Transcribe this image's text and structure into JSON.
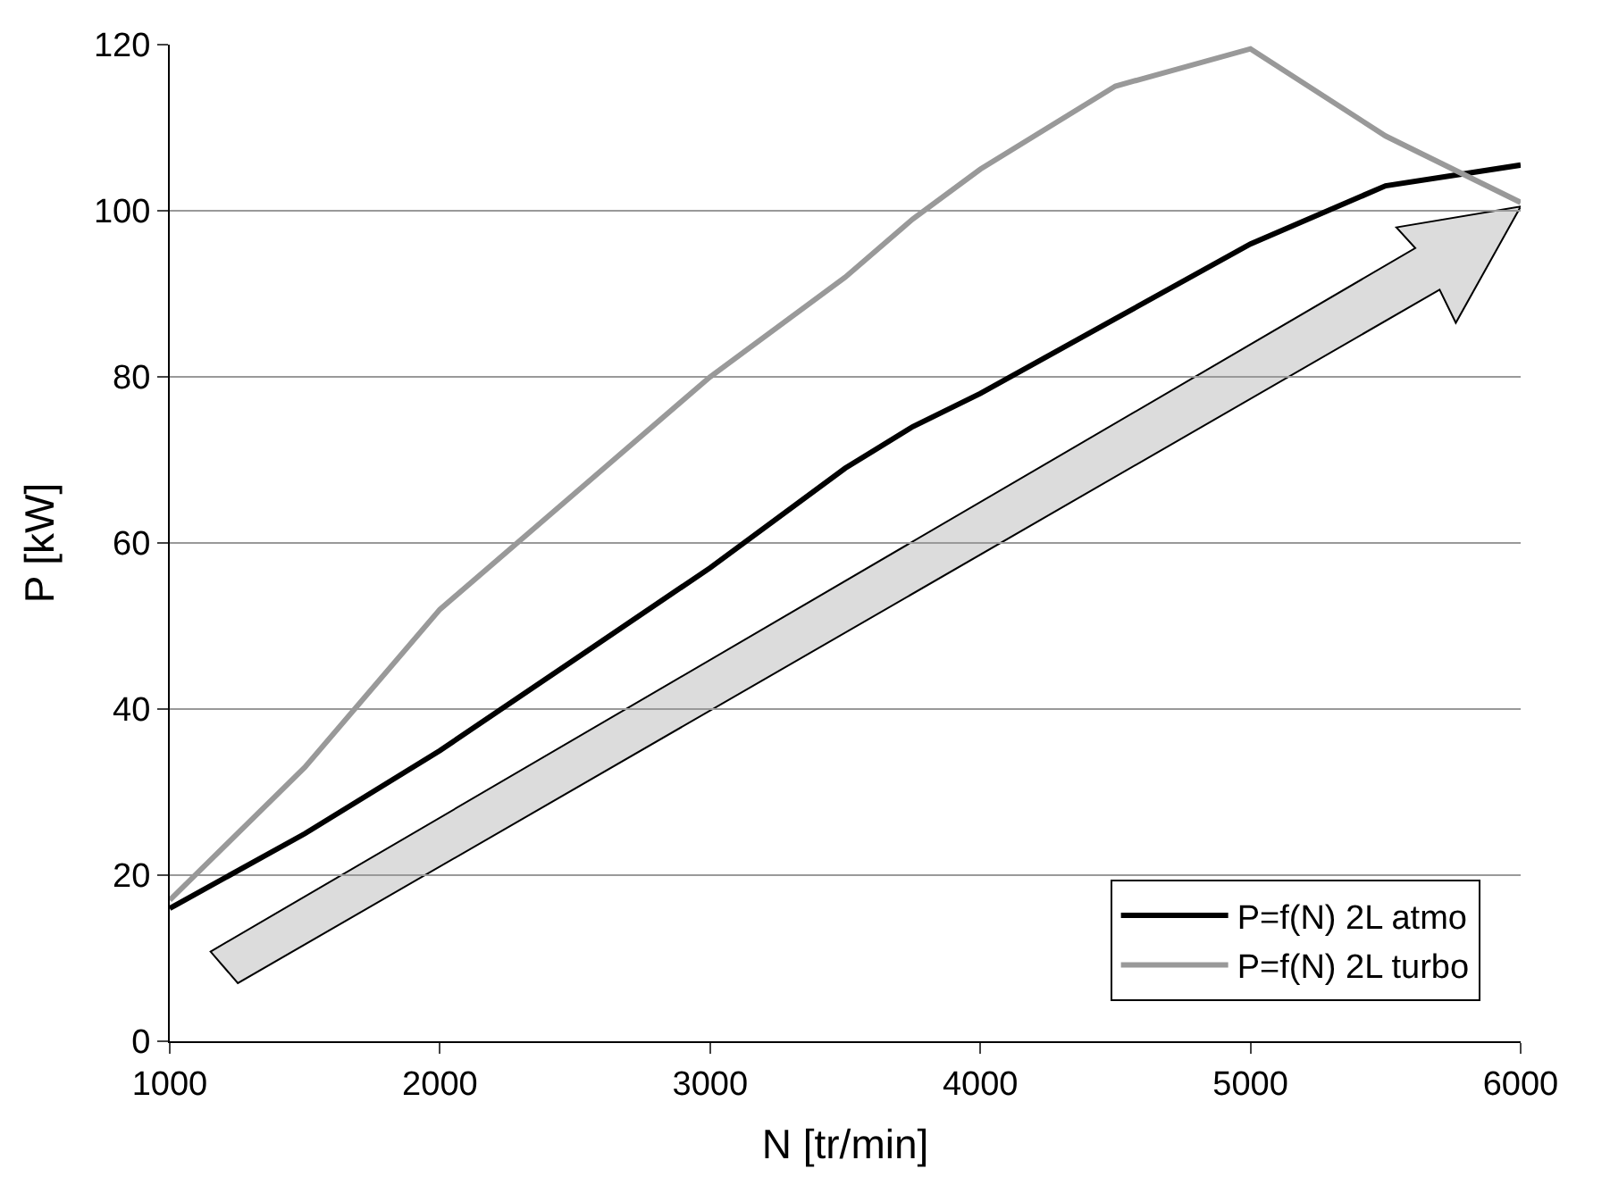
{
  "chart_data": {
    "type": "line",
    "xlabel": "N [tr/min]",
    "ylabel": "P [kW]",
    "x": [
      1000,
      1500,
      2000,
      2500,
      3000,
      3500,
      3750,
      4000,
      4500,
      5000,
      5500,
      6000
    ],
    "series": [
      {
        "name": "P=f(N) 2L atmo",
        "color": "#000000",
        "values": [
          16,
          25,
          35,
          46,
          57,
          69,
          74,
          78,
          87,
          96,
          103,
          105.5
        ]
      },
      {
        "name": "P=f(N) 2L turbo",
        "color": "#999999",
        "values": [
          17,
          33,
          52,
          66,
          80,
          92,
          99,
          105,
          115,
          119.5,
          109,
          101
        ]
      }
    ],
    "xlim": [
      1000,
      6000
    ],
    "xticks": [
      1000,
      2000,
      3000,
      4000,
      5000,
      6000
    ],
    "ylim": [
      0,
      120
    ],
    "yticks": [
      0,
      20,
      40,
      60,
      80,
      100,
      120
    ],
    "grid": "y",
    "legend": "bottom right",
    "marker": "none",
    "line_style": "solid"
  }
}
